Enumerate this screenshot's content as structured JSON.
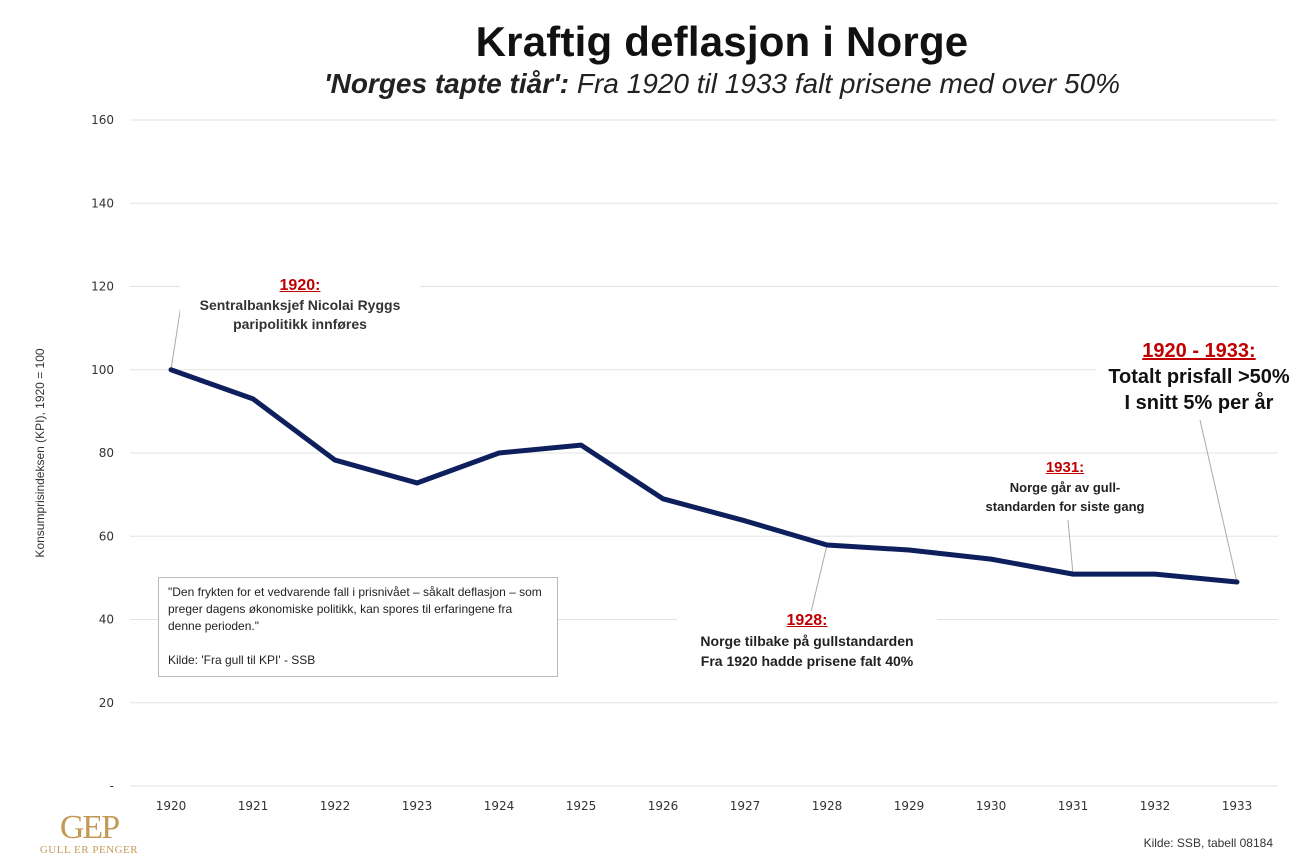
{
  "chart_data": {
    "type": "line",
    "title": "Kraftig deflasjon i Norge",
    "subtitle_bold": "'Norges tapte tiår':",
    "subtitle_rest": " Fra 1920 til 1933 falt prisene med over 50%",
    "xlabel": "",
    "ylabel": "Konsumprisindeksen (KPI), 1920 = 100",
    "ylim": [
      0,
      160
    ],
    "yticks": [
      0,
      20,
      40,
      60,
      80,
      100,
      120,
      140,
      160
    ],
    "ytick_labels": [
      "-",
      "20",
      "40",
      "60",
      "80",
      "100",
      "120",
      "140",
      "160"
    ],
    "grid": true,
    "categories": [
      "1920",
      "1921",
      "1922",
      "1923",
      "1924",
      "1925",
      "1926",
      "1927",
      "1928",
      "1929",
      "1930",
      "1931",
      "1932",
      "1933"
    ],
    "series": [
      {
        "name": "KPI",
        "color": "#0d1f5c",
        "values": [
          100,
          93.0,
          78.3,
          72.8,
          80.0,
          81.9,
          69.0,
          63.7,
          57.9,
          56.7,
          54.5,
          50.9,
          50.9,
          49.0
        ]
      }
    ]
  },
  "annotations": {
    "a1920": {
      "year": "1920:",
      "lines": [
        "Sentralbanksjef Nicolai Ryggs",
        "paripolitikk innføres"
      ]
    },
    "a1928": {
      "year": "1928:",
      "lines": [
        "Norge tilbake på gullstandarden",
        "Fra 1920 hadde prisene falt 40%"
      ]
    },
    "a1931": {
      "year": "1931:",
      "lines": [
        "Norge går av gull-",
        "standarden for siste gang"
      ]
    },
    "a1933": {
      "year": "1920 - 1933:",
      "lines": [
        "Totalt prisfall >50%",
        "I snitt 5% per år"
      ]
    }
  },
  "quote": {
    "text": "\"Den frykten for et vedvarende fall i prisnivået – såkalt deflasjon – som preger dagens økonomiske politikk, kan spores til erfaringene fra denne perioden.\"",
    "source": "Kilde: 'Fra gull til KPI' - SSB"
  },
  "footer": {
    "source": "Kilde: SSB, tabell 08184",
    "logo_mark": "GEP",
    "logo_text": "GULL ER PENGER"
  }
}
